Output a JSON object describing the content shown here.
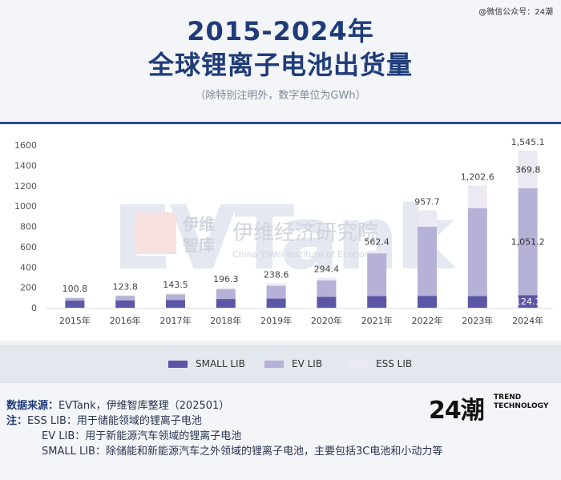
{
  "top_watermark": "@微信公众号：24潮",
  "title_line1": "2015-2024年",
  "title_line2": "全球锂离子电池出货量",
  "subtitle": "（除特别注明外，数字单位为GWh）",
  "colors": {
    "small_lib": "#5b56a6",
    "ev_lib": "#b6b1d6",
    "ess_lib": "#ece9f3",
    "title": "#1f3c7a",
    "rule": "#2a4d92"
  },
  "chart_data": {
    "type": "bar",
    "stacked": true,
    "categories": [
      "2015年",
      "2016年",
      "2017年",
      "2018年",
      "2019年",
      "2020年",
      "2021年",
      "2022年",
      "2023年",
      "2024年"
    ],
    "totals": [
      "100.8",
      "123.8",
      "143.5",
      "196.3",
      "238.6",
      "294.4",
      "562.4",
      "957.7",
      "1,202.6",
      "1,545.1"
    ],
    "total_values": [
      100.8,
      123.8,
      143.5,
      196.3,
      238.6,
      294.4,
      562.4,
      957.7,
      1202.6,
      1545.1
    ],
    "series": [
      {
        "name": "SMALL LIB",
        "values": [
          70,
          72,
          75,
          86,
          90,
          108,
          115,
          117,
          115,
          124.1
        ]
      },
      {
        "name": "EV LIB",
        "values": [
          26,
          45,
          57,
          95,
          126,
          160,
          420,
          680,
          865,
          1051.2
        ]
      },
      {
        "name": "ESS LIB",
        "values": [
          4.8,
          6.8,
          11.5,
          15.3,
          22.6,
          26.4,
          27.4,
          160.7,
          222.6,
          369.8
        ]
      }
    ],
    "segment_labels": [
      {
        "category": "2024年",
        "series": "ESS LIB",
        "text": "369.8"
      },
      {
        "category": "2024年",
        "series": "EV LIB",
        "text": "1,051.2"
      },
      {
        "category": "2024年",
        "series": "SMALL LIB",
        "text": "124.1"
      }
    ],
    "yticks": [
      "0",
      "200",
      "400",
      "600",
      "800",
      "1000",
      "1200",
      "1400",
      "1600"
    ],
    "ylim": [
      0,
      1600
    ],
    "legend_position": "bottom",
    "grid": false
  },
  "watermark": {
    "brand": "EVTank",
    "cn_short_1": "伊维",
    "cn_short_2": "智库",
    "institute_cn": "伊维经济研究院",
    "institute_en": "China YiWei Institute of Economics"
  },
  "notes": {
    "source_key": "数据来源：",
    "source_value": "EVTank，伊维智库整理（202501）",
    "note_key": "注：",
    "ess_line": "ESS LIB：用于储能领域的锂离子电池",
    "ev_line": "EV LIB：用于新能源汽车领域的锂离子电池",
    "small_line": "SMALL LIB：除储能和新能源汽车之外领域的锂离子电池，主要包括3C电池和小动力等"
  },
  "logo": {
    "mark": "24潮",
    "text_line1": "TREND",
    "text_line2": "TECHNOLOGY"
  }
}
